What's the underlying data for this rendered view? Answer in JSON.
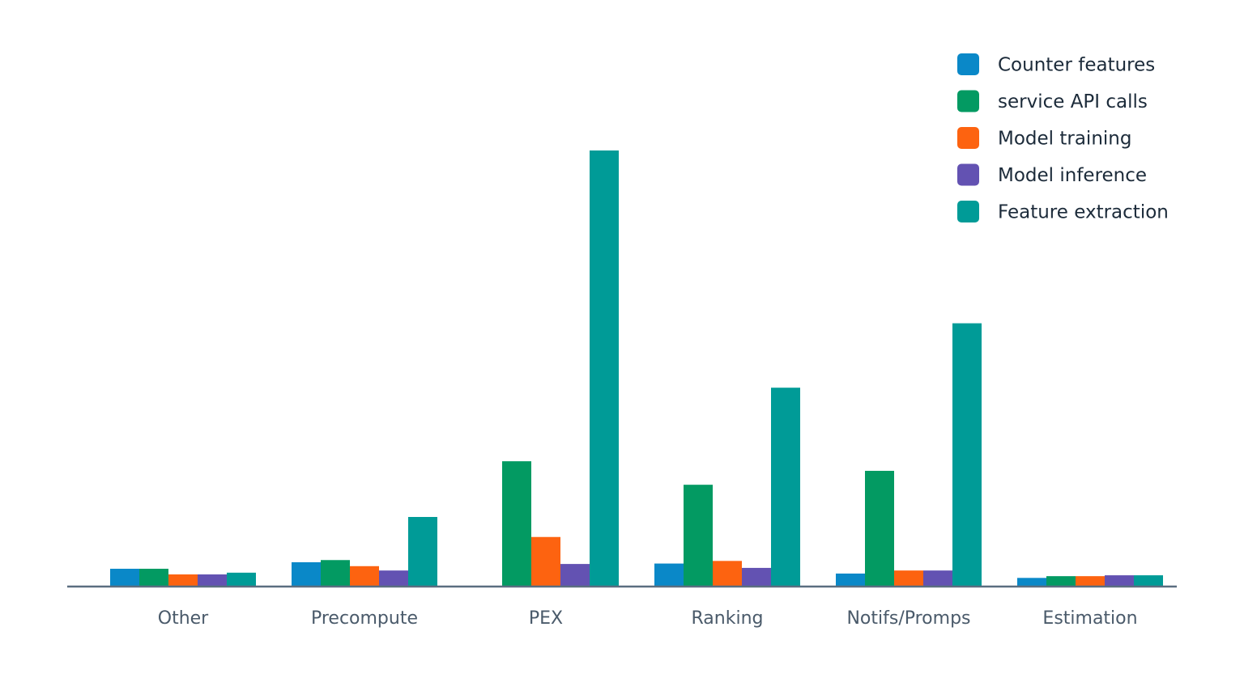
{
  "chart_data": {
    "type": "bar",
    "title": "",
    "xlabel": "",
    "ylabel": "",
    "ylim": [
      0,
      100
    ],
    "grid": false,
    "legend_position": "top-right",
    "categories": [
      "Other",
      "Precompute",
      "PEX",
      "Ranking",
      "Notifs/Promps",
      "Estimation"
    ],
    "series": [
      {
        "name": "Counter features",
        "color": "#0a88c8",
        "values": [
          3.9,
          5.4,
          0,
          5.1,
          2.8,
          1.8
        ]
      },
      {
        "name": "service API calls",
        "color": "#039a62",
        "values": [
          3.9,
          5.9,
          28.6,
          23.2,
          26.4,
          2.2
        ]
      },
      {
        "name": "Model training",
        "color": "#fd6310",
        "values": [
          2.6,
          4.5,
          11.2,
          5.7,
          3.5,
          2.2
        ]
      },
      {
        "name": "Model inference",
        "color": "#6352b2",
        "values": [
          2.6,
          3.5,
          5.0,
          4.1,
          3.5,
          2.4
        ]
      },
      {
        "name": "Feature extraction",
        "color": "#009b97",
        "values": [
          3.0,
          15.8,
          100,
          45.5,
          60.3,
          2.4
        ]
      }
    ]
  }
}
